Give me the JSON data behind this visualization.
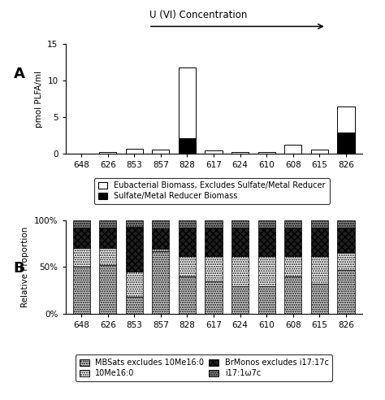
{
  "categories": [
    "648",
    "626",
    "853",
    "857",
    "828",
    "617",
    "624",
    "610",
    "608",
    "615",
    "826"
  ],
  "bar_A_white": [
    0.0,
    0.25,
    0.7,
    0.6,
    11.8,
    0.5,
    0.3,
    0.3,
    1.3,
    0.55,
    6.5
  ],
  "bar_A_black": [
    0.0,
    0.0,
    0.0,
    0.0,
    2.1,
    0.0,
    0.0,
    0.0,
    0.0,
    0.0,
    2.9
  ],
  "bar_B_mbsats": [
    50,
    52,
    18,
    67,
    40,
    35,
    30,
    30,
    40,
    32,
    47
  ],
  "bar_B_10Me16": [
    20,
    18,
    27,
    2,
    22,
    27,
    32,
    32,
    22,
    30,
    18
  ],
  "bar_B_brmonos": [
    22,
    22,
    48,
    22,
    30,
    30,
    30,
    30,
    30,
    30,
    27
  ],
  "bar_B_i17": [
    8,
    8,
    7,
    9,
    8,
    8,
    8,
    8,
    8,
    8,
    8
  ],
  "ylim_A": [
    0,
    15
  ],
  "ylim_B": [
    0,
    100
  ],
  "ylabel_A": "pmol PLFA/ml",
  "ylabel_B": "Relative Proportion",
  "title": "U (VI) Concentration",
  "legend_A_labels": [
    "Eubacterial Biomass, Excludes Sulfate/Metal Reducer",
    "Sulfate/Metal Reducer Biomass"
  ],
  "legend_B_labels": [
    "MBSats excludes 10Me16:0",
    "10Me16:0",
    "BrMonos excludes i17:17c",
    "i17:1ω7c"
  ],
  "color_white": "#ffffff",
  "color_black": "#000000",
  "color_mbsats": "#d0d0d0",
  "color_10Me16": "#ffffff",
  "color_brmonos": "#202020",
  "color_i17": "#888888",
  "label_A": "A",
  "label_B": "B"
}
